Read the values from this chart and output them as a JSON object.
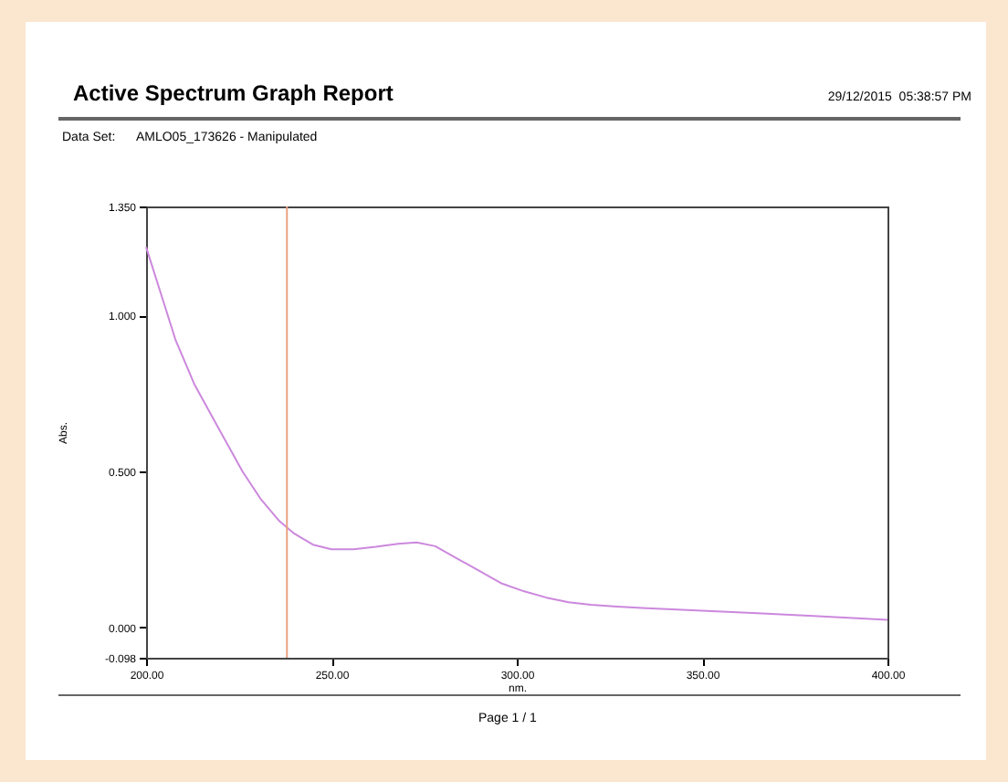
{
  "chart_data": {
    "type": "line",
    "title": "Active Spectrum Graph Report",
    "subtitle": "Data Set:      AMLO05_173626 - Manipulated",
    "annotations": [
      "29/12/2015  05:38:57 PM",
      "Page 1 / 1"
    ],
    "xlabel": "nm.",
    "ylabel": "Abs.",
    "x": [
      200,
      204,
      208,
      213,
      219,
      226,
      231,
      236,
      240,
      245,
      250,
      256,
      262,
      268,
      273,
      278,
      284,
      290,
      296,
      302,
      308,
      314,
      320,
      327,
      335,
      350,
      365,
      380,
      400
    ],
    "series": [
      {
        "color": "#cc88dd",
        "values": [
          1.22,
          1.07,
          0.92,
          0.78,
          0.65,
          0.5,
          0.41,
          0.34,
          0.3,
          0.265,
          0.25,
          0.25,
          0.258,
          0.268,
          0.272,
          0.26,
          0.22,
          0.18,
          0.14,
          0.115,
          0.095,
          0.08,
          0.072,
          0.066,
          0.061,
          0.053,
          0.045,
          0.036,
          0.024
        ]
      }
    ],
    "xlim": [
      200,
      400
    ],
    "ylim": [
      -0.098,
      1.35
    ],
    "xticks": [
      {
        "value": 200,
        "label": "200.00"
      },
      {
        "value": 250,
        "label": "250.00"
      },
      {
        "value": 300,
        "label": "300.00"
      },
      {
        "value": 350,
        "label": "350.00"
      },
      {
        "value": 400,
        "label": "400.00"
      }
    ],
    "yticks": [
      {
        "value": -0.098,
        "label": "-0.098"
      },
      {
        "value": 0,
        "label": "0.000"
      },
      {
        "value": 0.5,
        "label": "0.500"
      },
      {
        "value": 1,
        "label": "1.000"
      },
      {
        "value": 1.35,
        "label": "1.350"
      }
    ],
    "ref_lines": [
      {
        "axis": "x",
        "value": 238,
        "color": "#e8a080"
      }
    ],
    "grid": false,
    "marker": "none",
    "line_style": "solid"
  }
}
